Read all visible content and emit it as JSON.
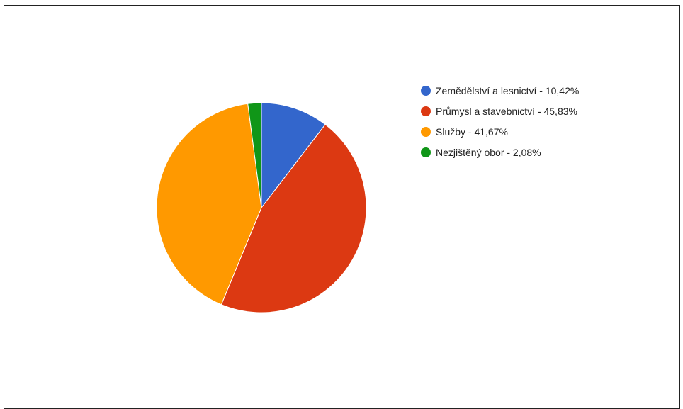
{
  "chart_data": {
    "type": "pie",
    "start_angle_deg": 0,
    "direction": "clockwise",
    "legend_position": "right",
    "slices": [
      {
        "label": "Zemědělství a lesnictví - 10,42%",
        "value": 10.42,
        "color": "#3366cc"
      },
      {
        "label": "Průmysl a stavebnictví - 45,83%",
        "value": 45.83,
        "color": "#dc3912"
      },
      {
        "label": "Služby - 41,67%",
        "value": 41.67,
        "color": "#ff9900"
      },
      {
        "label": "Nezjištěný obor - 2,08%",
        "value": 2.08,
        "color": "#109618"
      }
    ]
  }
}
